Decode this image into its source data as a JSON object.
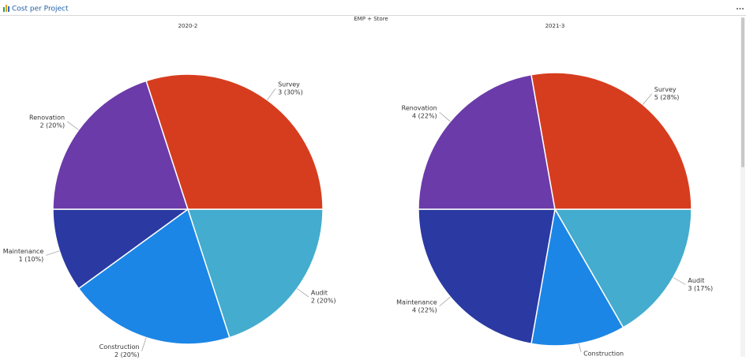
{
  "panel": {
    "title": "Cost per Project"
  },
  "chart_title": "EMP + Store",
  "chart_data": [
    {
      "type": "pie",
      "title": "2020-2",
      "categories": [
        "Audit",
        "Construction",
        "Maintenance",
        "Renovation",
        "Survey"
      ],
      "values": [
        2,
        2,
        1,
        2,
        3
      ],
      "value_labels": [
        "2 (20%)",
        "2 (20%)",
        "1 (10%)",
        "2 (20%)",
        "3 (30%)"
      ],
      "colors": [
        "#44acce",
        "#1c86e6",
        "#2a3aa2",
        "#6b3ba9",
        "#d63d1e"
      ]
    },
    {
      "type": "pie",
      "title": "2021-3",
      "categories": [
        "Audit",
        "Construction",
        "Maintenance",
        "Renovation",
        "Survey"
      ],
      "values": [
        3,
        2,
        4,
        4,
        5
      ],
      "value_labels": [
        "3 (17%)",
        null,
        "4 (22%)",
        "4 (22%)",
        "5 (28%)"
      ],
      "colors": [
        "#44acce",
        "#1c86e6",
        "#2a3aa2",
        "#6b3ba9",
        "#d63d1e"
      ]
    }
  ]
}
